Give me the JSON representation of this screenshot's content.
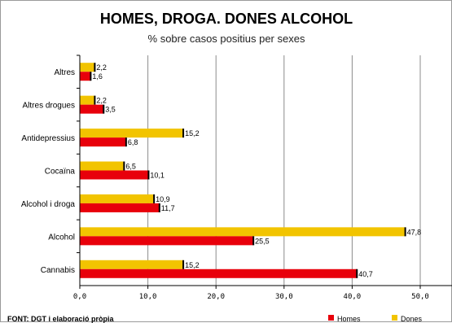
{
  "chart_data": {
    "type": "bar",
    "orientation": "horizontal",
    "title": "HOMES, DROGA. DONES ALCOHOL",
    "subtitle": "% sobre casos positius per sexes",
    "categories": [
      "Altres",
      "Altres drogues",
      "Antidepressius",
      "Cocaïna",
      "Alcohol i droga",
      "Alcohol",
      "Cannabis"
    ],
    "series": [
      {
        "name": "Homes",
        "color": "#e8000b",
        "values": [
          1.6,
          3.5,
          6.8,
          10.1,
          11.7,
          25.5,
          40.7
        ],
        "labels": [
          "1,6",
          "3,5",
          "6,8",
          "10,1",
          "11,7",
          "25,5",
          "40,7"
        ]
      },
      {
        "name": "Dones",
        "color": "#f2c400",
        "values": [
          2.2,
          2.2,
          15.2,
          6.5,
          10.9,
          47.8,
          15.2
        ],
        "labels": [
          "2,2",
          "2,2",
          "15,2",
          "6,5",
          "10,9",
          "47,8",
          "15,2"
        ]
      }
    ],
    "xlim": [
      0,
      50
    ],
    "xticks": [
      0,
      10,
      20,
      30,
      40,
      50
    ],
    "xtick_labels": [
      "0,0",
      "10,0",
      "20,0",
      "30,0",
      "40,0",
      "50,0"
    ],
    "grid": "vertical",
    "legend_position": "bottom-right"
  },
  "source": "FONT: DGT  i elaboració pròpia"
}
